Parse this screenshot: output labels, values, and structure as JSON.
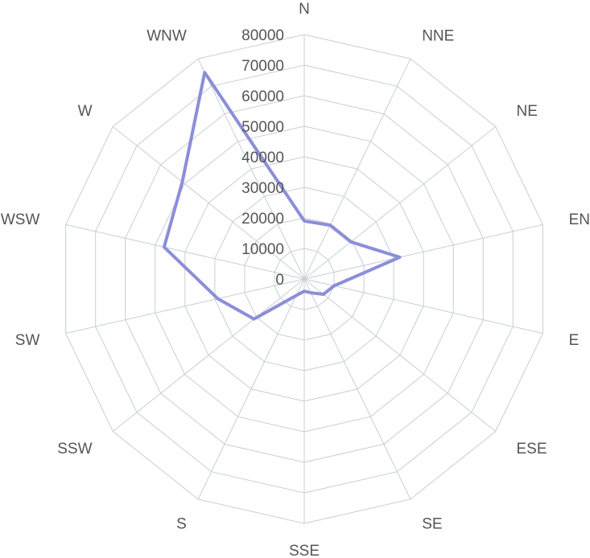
{
  "chart_data": {
    "type": "radar",
    "categories": [
      "N",
      "NNE",
      "NE",
      "ENE",
      "E",
      "ESE",
      "SE",
      "SSE",
      "S",
      "SSW",
      "SW",
      "WSW",
      "W",
      "WNW"
    ],
    "series": [
      {
        "values": [
          19000,
          19500,
          19500,
          32000,
          10000,
          8000,
          5000,
          4000,
          6000,
          21000,
          29000,
          47000,
          51000,
          75000
        ],
        "color": "#8b8ed8"
      }
    ],
    "rlim": [
      0,
      80000
    ],
    "ticks": [
      0,
      10000,
      20000,
      30000,
      40000,
      50000,
      60000,
      70000,
      80000
    ],
    "tick_labels": [
      "0",
      "10000",
      "20000",
      "30000",
      "40000",
      "50000",
      "60000",
      "70000",
      "80000"
    ],
    "grid": true,
    "grid_color": "#c9ced3",
    "text_color": "#555555"
  }
}
